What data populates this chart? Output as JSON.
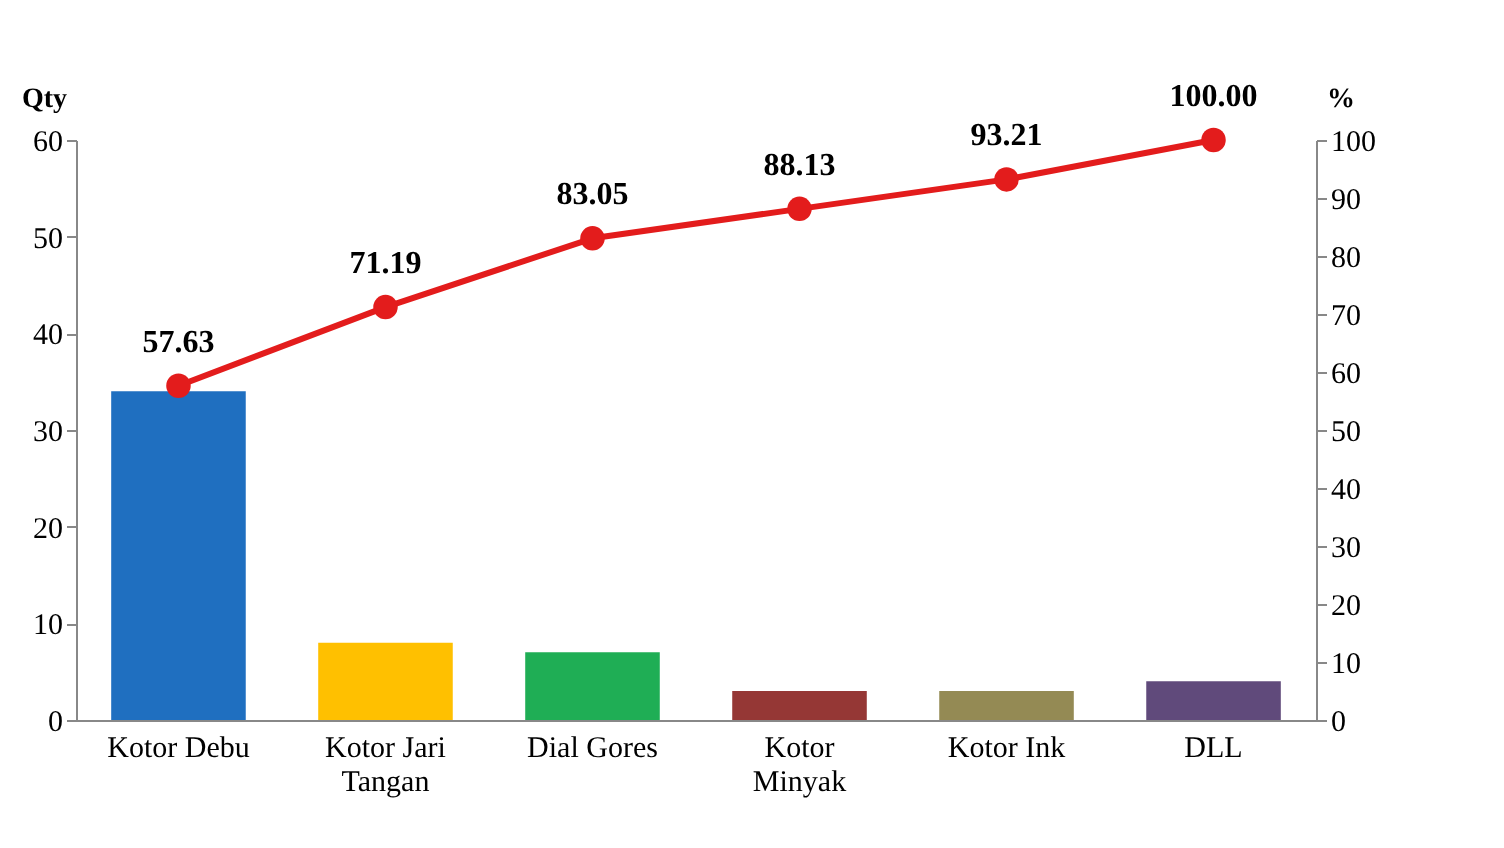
{
  "chart_data": {
    "type": "bar",
    "categories": [
      "Kotor Debu",
      "Kotor Jari\nTangan",
      "Dial Gores",
      "Kotor\nMinyak",
      "Kotor Ink",
      "DLL"
    ],
    "ylabel": "Qty",
    "y2label": "%",
    "ylim": [
      0,
      60
    ],
    "yticks": [
      0,
      10,
      20,
      30,
      40,
      50,
      60
    ],
    "y2lim": [
      0,
      100
    ],
    "y2ticks": [
      0,
      10,
      20,
      30,
      40,
      50,
      60,
      70,
      80,
      90,
      100
    ],
    "marker": "circle",
    "series": [
      {
        "colors": [
          "#1f6fc0",
          "#ffc000",
          "#1fae55",
          "#953735",
          "#948a54",
          "#604a7b"
        ],
        "values": [
          34,
          8,
          7,
          3,
          3,
          4
        ]
      },
      {
        "type": "line",
        "axis": "y2",
        "color": "#e31c1c",
        "values": [
          57.63,
          71.19,
          83.05,
          88.13,
          93.21,
          100.0
        ],
        "value_labels": [
          "57.63",
          "71.19",
          "83.05",
          "88.13",
          "93.21",
          "100.00"
        ]
      }
    ]
  }
}
